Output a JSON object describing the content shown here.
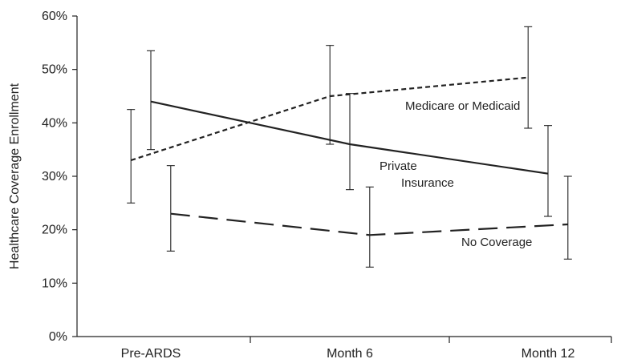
{
  "chart_data": {
    "type": "line",
    "title": "",
    "xlabel": "",
    "ylabel": "Healthcare Coverage Enrollment",
    "categories": [
      "Pre-ARDS",
      "Month 6",
      "Month 12"
    ],
    "ylim": [
      0,
      60
    ],
    "yticks": [
      "0%",
      "10%",
      "20%",
      "30%",
      "40%",
      "50%",
      "60%"
    ],
    "grid": false,
    "series": [
      {
        "name": "Medicare or Medicaid",
        "line_style": "short-dash",
        "values": [
          33,
          45,
          48.5
        ],
        "error_low": [
          25,
          36,
          39
        ],
        "error_high": [
          42.5,
          54.5,
          58
        ],
        "x_offset": -0.1
      },
      {
        "name": "Private Insurance",
        "line_style": "solid",
        "values": [
          44,
          36,
          30.5
        ],
        "error_low": [
          35,
          27.5,
          22.5
        ],
        "error_high": [
          53.5,
          45.5,
          39.5
        ],
        "x_offset": 0
      },
      {
        "name": "No Coverage",
        "line_style": "long-dash",
        "values": [
          23,
          19,
          21
        ],
        "error_low": [
          16,
          13,
          14.5
        ],
        "error_high": [
          32,
          28,
          30
        ],
        "x_offset": 0.1
      }
    ],
    "annotations": [
      {
        "text": "Medicare or Medicaid",
        "series": 0
      },
      {
        "text": "Private",
        "series": 1
      },
      {
        "text": "Insurance",
        "series": 1
      },
      {
        "text": "No Coverage",
        "series": 2
      }
    ],
    "colors": {
      "line": "#222222",
      "text": "#222222"
    }
  }
}
